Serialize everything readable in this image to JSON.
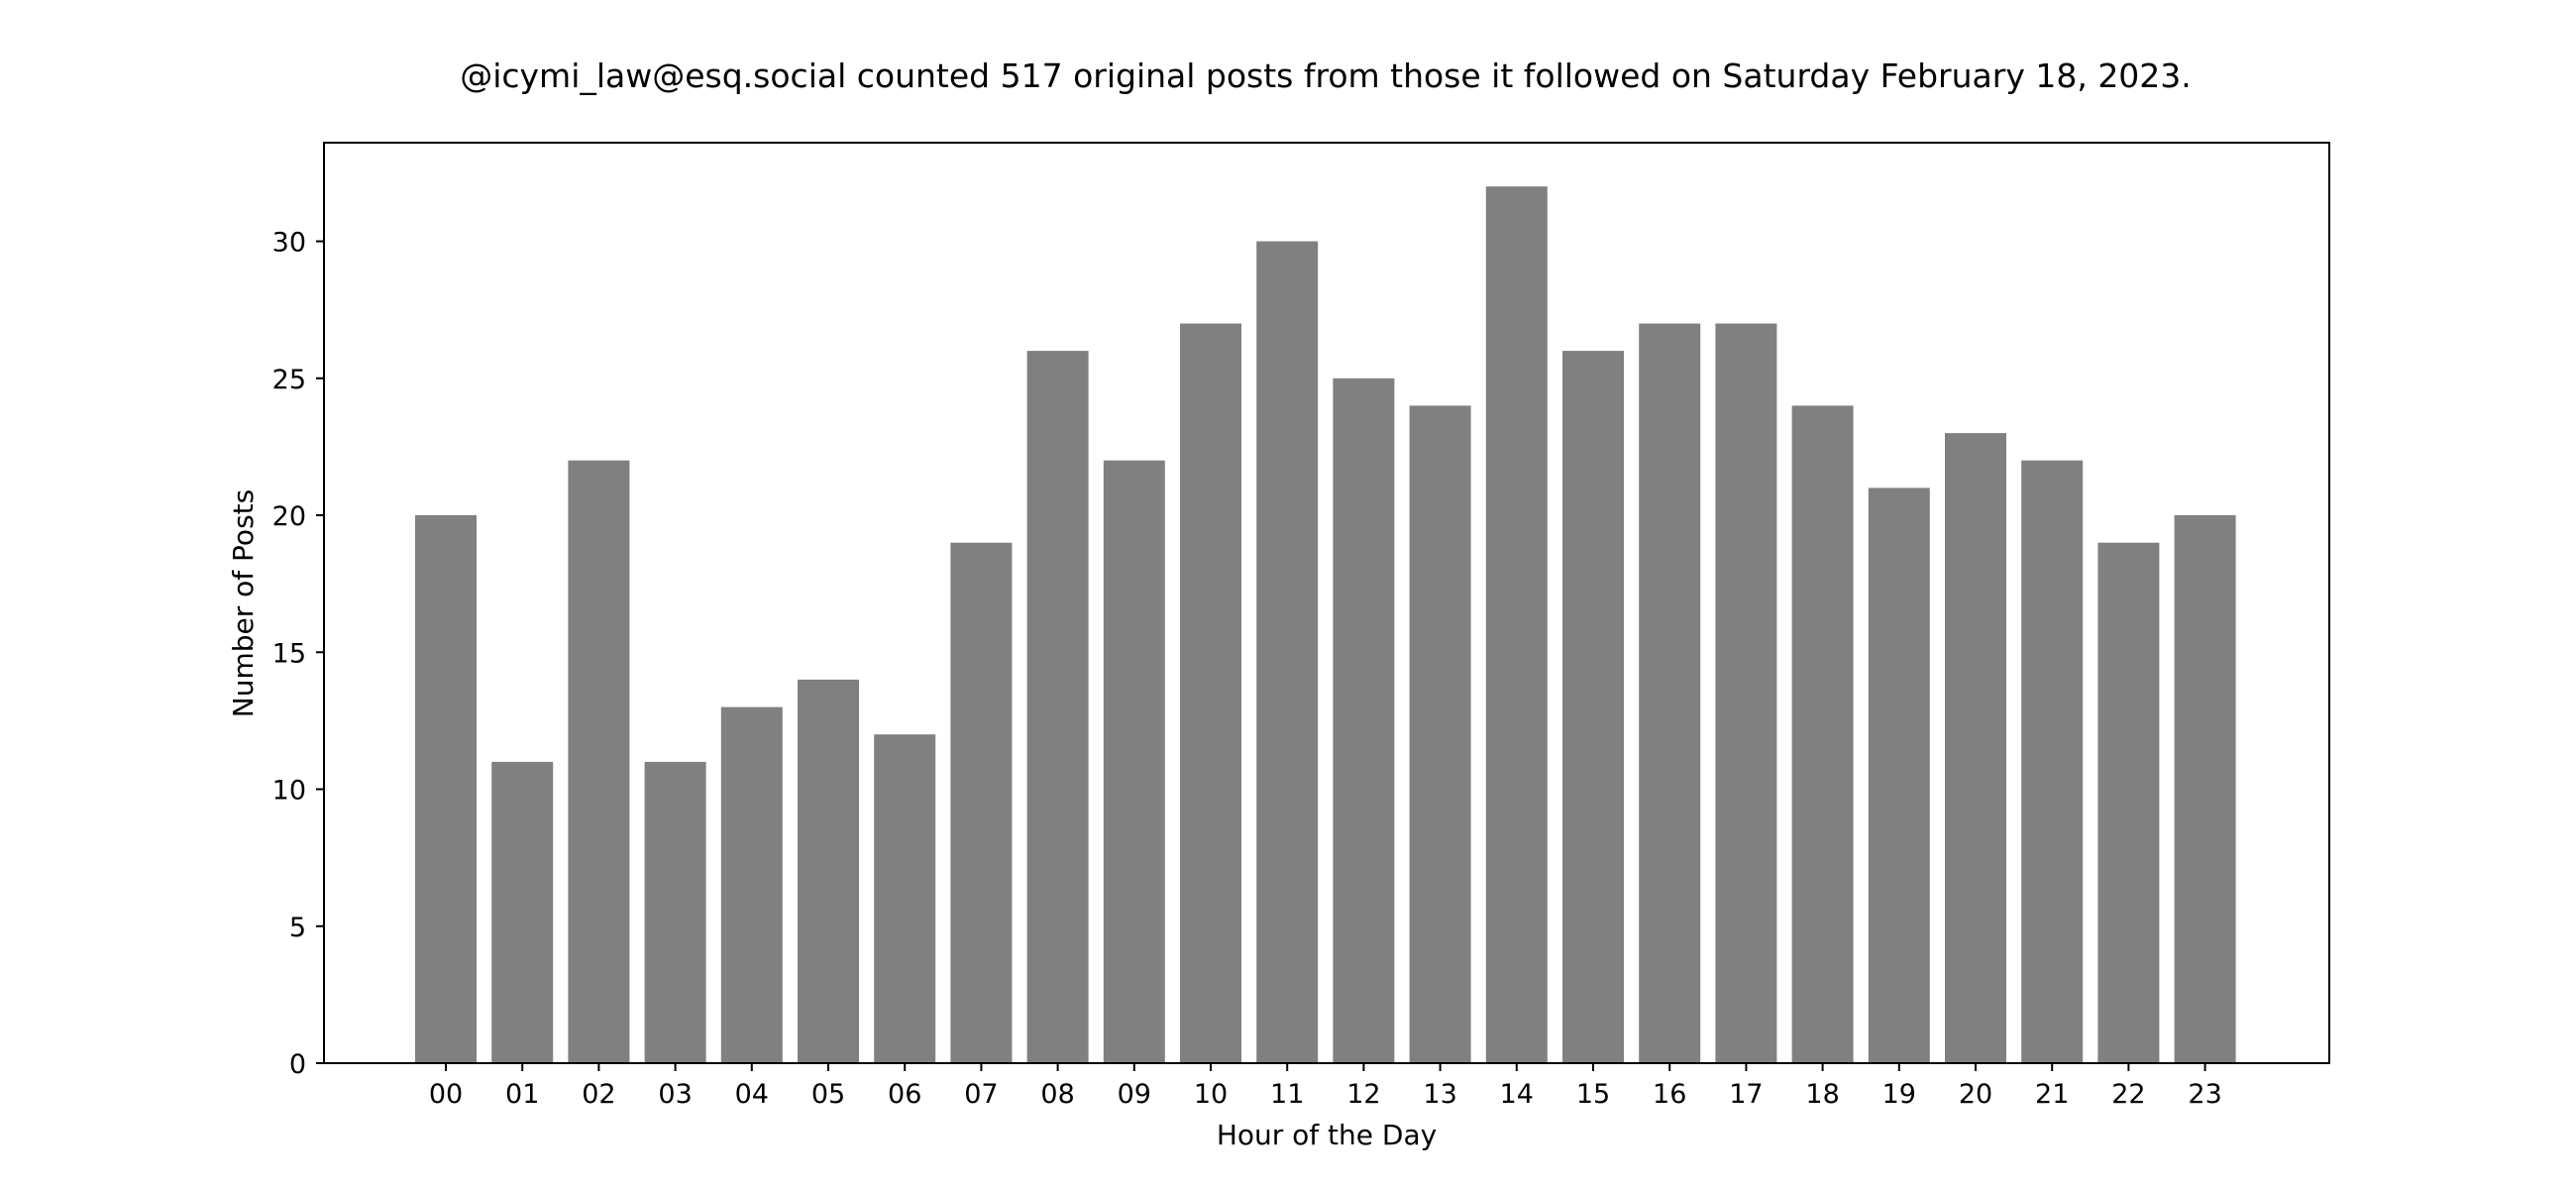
{
  "chart_data": {
    "type": "bar",
    "title": "@icymi_law@esq.social counted 517 original posts from those it followed on Saturday February 18, 2023.",
    "xlabel": "Hour of the Day",
    "ylabel": "Number of Posts",
    "categories": [
      "00",
      "01",
      "02",
      "03",
      "04",
      "05",
      "06",
      "07",
      "08",
      "09",
      "10",
      "11",
      "12",
      "13",
      "14",
      "15",
      "16",
      "17",
      "18",
      "19",
      "20",
      "21",
      "22",
      "23"
    ],
    "values": [
      20,
      11,
      22,
      11,
      13,
      14,
      12,
      19,
      26,
      22,
      27,
      30,
      25,
      24,
      32,
      26,
      27,
      27,
      24,
      21,
      23,
      22,
      19,
      20
    ],
    "ylim": [
      0,
      33.6
    ],
    "yticks": [
      0,
      5,
      10,
      15,
      20,
      25,
      30
    ],
    "bar_color": "#808080",
    "grid": false,
    "legend": "none"
  }
}
